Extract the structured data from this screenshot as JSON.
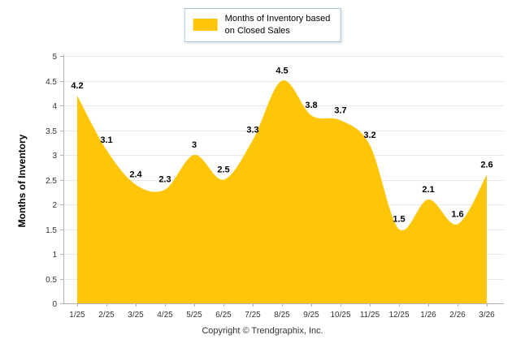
{
  "footer": {
    "copyright": "Copyright © Trendgraphix, Inc."
  },
  "chart_data": {
    "type": "area",
    "categories": [
      "1/25",
      "2/25",
      "3/25",
      "4/25",
      "5/25",
      "6/25",
      "7/25",
      "8/25",
      "9/25",
      "10/25",
      "11/25",
      "12/25",
      "1/26",
      "2/26",
      "3/26"
    ],
    "values": [
      4.2,
      3.1,
      2.4,
      2.3,
      3,
      2.5,
      3.3,
      4.5,
      3.8,
      3.7,
      3.2,
      1.5,
      2.1,
      1.6,
      2.6
    ],
    "ylabel": "Months of Inventory",
    "xlabel": "",
    "ylim": [
      0,
      5
    ],
    "y_ticks": [
      0,
      0.5,
      1,
      1.5,
      2,
      2.5,
      3,
      3.5,
      4,
      4.5,
      5
    ],
    "grid": true,
    "legend_position": "top-center",
    "legend": [
      "Months of Inventory based",
      "on Closed Sales"
    ],
    "data_labels": true,
    "colors": {
      "area": "#FFC609",
      "grid": "#E8E8E8",
      "axis": "#B3B3B3",
      "tick_text": "#333333",
      "data_label": "#000000",
      "legend_border": "#A7C4DE"
    }
  }
}
